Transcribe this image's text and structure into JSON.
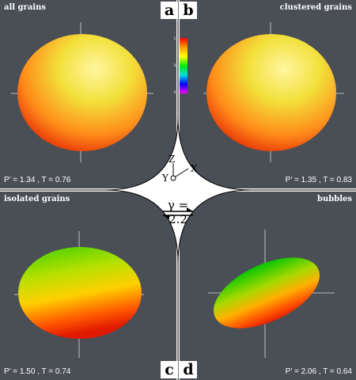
{
  "panels": [
    {
      "letter": "a",
      "title": "all grains",
      "stats": "P’ = 1.34 , T = 0.76"
    },
    {
      "letter": "b",
      "title": "clustered grains",
      "stats": "P’ = 1.35 , T = 0.83"
    },
    {
      "letter": "c",
      "title": "isolated grains",
      "stats": "P’ = 1.50 , T = 0.74"
    },
    {
      "letter": "d",
      "title": "bubbles",
      "stats": "P’ = 2.06 , T = 0.64"
    }
  ],
  "center": {
    "axis_z": "Z",
    "axis_x": "X",
    "axis_y": "Y",
    "gamma": "γ = 2.2"
  },
  "colorbar": {
    "ticks": [
      "1.0",
      "0.5",
      "0.0"
    ]
  },
  "colors": {
    "panel_bg": "#4a4e55",
    "high": "#ff2a00",
    "mid": "#ffd400",
    "low": "#28c800"
  }
}
